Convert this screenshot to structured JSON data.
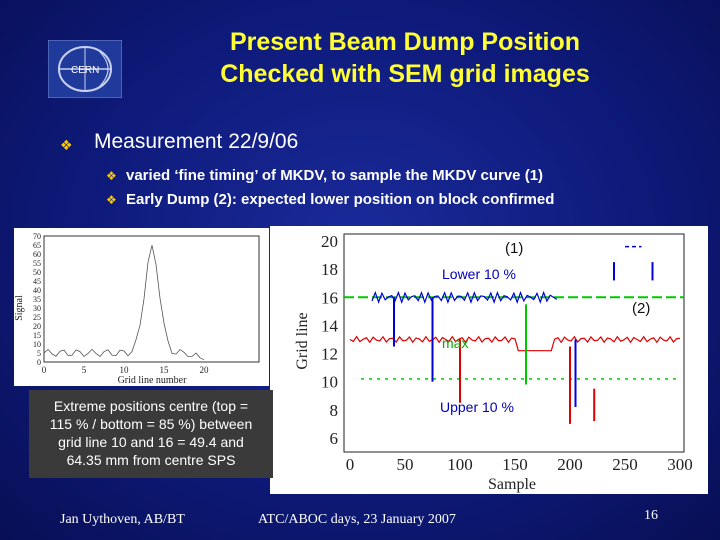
{
  "logo": {
    "text": "CERN"
  },
  "title": {
    "line1": "Present Beam Dump Position",
    "line2": "Checked with SEM grid images"
  },
  "bullet": {
    "text": "Measurement 22/9/06"
  },
  "subbullets": [
    "varied ‘fine timing’ of MKDV, to sample the MKDV curve (1)",
    "Early Dump (2): expected lower position on block confirmed"
  ],
  "left_plot": {
    "ylabel": "Signal",
    "xlabel": "Grid line number",
    "yticks": [
      "0",
      "5",
      "10",
      "15",
      "20",
      "25",
      "30",
      "35",
      "40",
      "45",
      "50",
      "55",
      "60",
      "65",
      "70"
    ],
    "xticks": [
      "0",
      "5",
      "10",
      "15",
      "20"
    ]
  },
  "right_plot": {
    "ylabel": "Grid line",
    "xlabel": "Sample",
    "yticks": [
      "6",
      "8",
      "10",
      "12",
      "14",
      "16",
      "18",
      "20"
    ],
    "xticks": [
      "0",
      "50",
      "100",
      "150",
      "200",
      "250",
      "300"
    ],
    "annotations": {
      "curve1": "(1)",
      "lower": "Lower 10 %",
      "early": "(2)",
      "max": "max",
      "upper": "Upper 10 %"
    },
    "colors": {
      "green": "#00c800",
      "red": "#e00000",
      "blue": "#0000dd"
    }
  },
  "note": {
    "line1": "Extreme positions centre (top =",
    "line2": "115 % / bottom = 85 %) between",
    "line3": "grid line 10 and 16 = 49.4 and",
    "line4": "64.35 mm from centre SPS"
  },
  "footer": {
    "author": "Jan Uythoven, AB/BT",
    "event": "ATC/ABOC days, 23 January 2007",
    "page": "16"
  }
}
